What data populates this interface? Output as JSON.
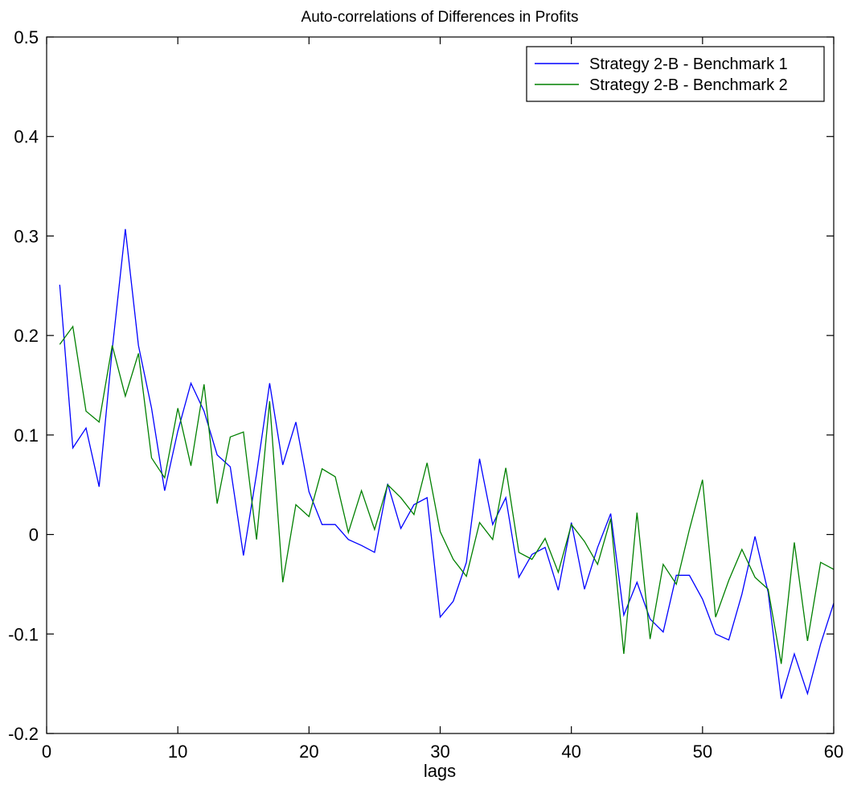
{
  "chart_data": {
    "type": "line",
    "title": "Auto-correlations of Differences in Profits",
    "xlabel": "lags",
    "ylabel": "",
    "xlim": [
      0,
      60
    ],
    "ylim": [
      -0.2,
      0.5
    ],
    "xticks": [
      0,
      10,
      20,
      30,
      40,
      50,
      60
    ],
    "xtick_labels": [
      "0",
      "10",
      "20",
      "30",
      "40",
      "50",
      "60"
    ],
    "yticks": [
      -0.2,
      -0.1,
      0,
      0.1,
      0.2,
      0.3,
      0.4,
      0.5
    ],
    "ytick_labels": [
      "-0.2",
      "-0.1",
      "0",
      "0.1",
      "0.2",
      "0.3",
      "0.4",
      "0.5"
    ],
    "grid": false,
    "legend_position": "top-right",
    "x": [
      1,
      2,
      3,
      4,
      5,
      6,
      7,
      8,
      9,
      10,
      11,
      12,
      13,
      14,
      15,
      16,
      17,
      18,
      19,
      20,
      21,
      22,
      23,
      24,
      25,
      26,
      27,
      28,
      29,
      30,
      31,
      32,
      33,
      34,
      35,
      36,
      37,
      38,
      39,
      40,
      41,
      42,
      43,
      44,
      45,
      46,
      47,
      48,
      49,
      50,
      51,
      52,
      53,
      54,
      55,
      56,
      57,
      58,
      59,
      60
    ],
    "series": [
      {
        "name": "Strategy 2-B - Benchmark 1",
        "color": "#0000ff",
        "values": [
          0.251,
          0.087,
          0.107,
          0.048,
          0.186,
          0.307,
          0.19,
          0.127,
          0.044,
          0.104,
          0.152,
          0.124,
          0.08,
          0.068,
          -0.021,
          0.061,
          0.152,
          0.07,
          0.113,
          0.043,
          0.01,
          0.01,
          -0.005,
          -0.011,
          -0.018,
          0.051,
          0.006,
          0.03,
          0.037,
          -0.083,
          -0.067,
          -0.028,
          0.076,
          0.01,
          0.037,
          -0.043,
          -0.02,
          -0.013,
          -0.056,
          0.012,
          -0.055,
          -0.013,
          0.021,
          -0.081,
          -0.048,
          -0.085,
          -0.098,
          -0.041,
          -0.041,
          -0.065,
          -0.1,
          -0.106,
          -0.06,
          -0.002,
          -0.058,
          -0.165,
          -0.12,
          -0.16,
          -0.11,
          -0.069
        ]
      },
      {
        "name": "Strategy 2-B - Benchmark 2",
        "color": "#008000",
        "values": [
          0.191,
          0.209,
          0.124,
          0.113,
          0.19,
          0.139,
          0.182,
          0.077,
          0.057,
          0.127,
          0.069,
          0.151,
          0.031,
          0.098,
          0.103,
          -0.005,
          0.134,
          -0.048,
          0.03,
          0.018,
          0.066,
          0.058,
          0.002,
          0.044,
          0.005,
          0.05,
          0.037,
          0.02,
          0.072,
          0.003,
          -0.025,
          -0.042,
          0.012,
          -0.005,
          0.067,
          -0.018,
          -0.025,
          -0.004,
          -0.038,
          0.01,
          -0.007,
          -0.03,
          0.016,
          -0.12,
          0.022,
          -0.105,
          -0.03,
          -0.05,
          0.005,
          0.055,
          -0.083,
          -0.046,
          -0.015,
          -0.043,
          -0.055,
          -0.13,
          -0.008,
          -0.107,
          -0.028,
          -0.035
        ]
      }
    ]
  }
}
